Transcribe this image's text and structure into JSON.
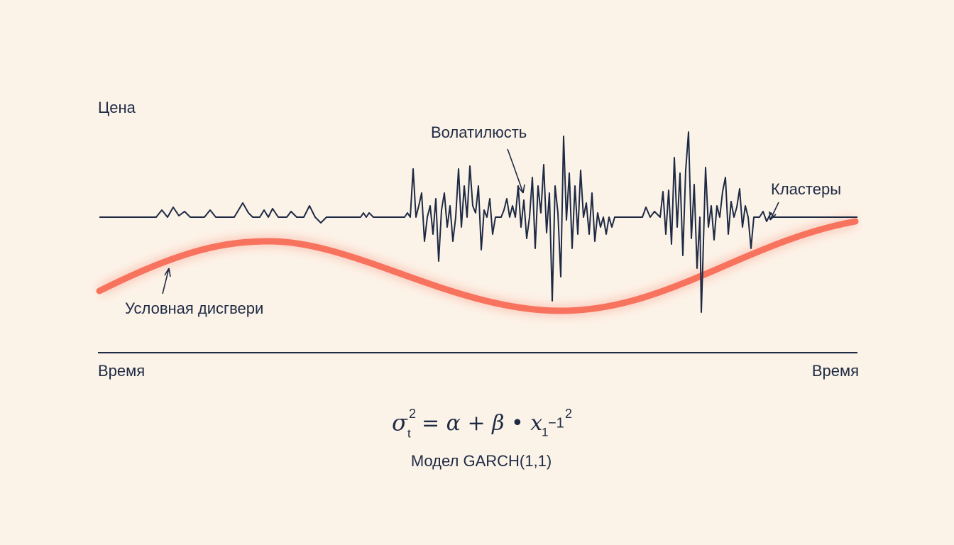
{
  "axis": {
    "y_label": "Цена",
    "x_label_left": "Время",
    "x_label_right": "Время"
  },
  "annotations": {
    "volatility": "Волатилюсть",
    "clusters": "Кластеры",
    "conditional": "Условная дисгвери"
  },
  "formula": {
    "sigma": "σ",
    "sigma_sub": "t",
    "sigma_sup": "2",
    "body": "= α + β • x",
    "x_sub": "1",
    "lag": "−1",
    "x_sup": "2"
  },
  "caption": "Модел GARCH(1,1)"
}
